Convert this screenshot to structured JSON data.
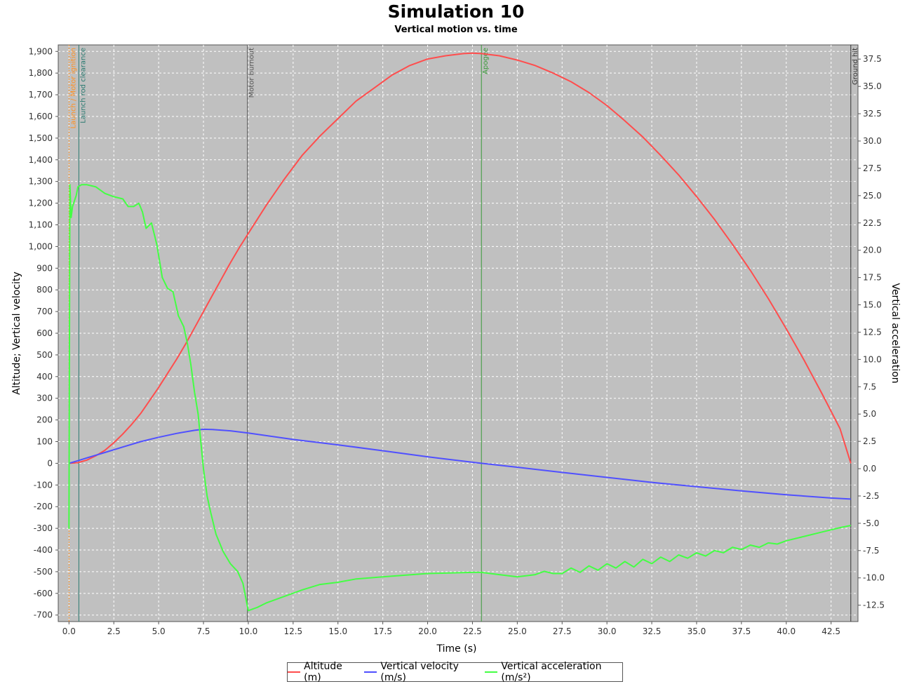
{
  "title": "Simulation 10",
  "subtitle": "Vertical motion vs. time",
  "chart_data": {
    "type": "line",
    "xlabel": "Time (s)",
    "ylabel": "Altitude; Vertical velocity",
    "y2label": "Vertical acceleration",
    "xlim": [
      -0.6,
      44.0
    ],
    "ylim": [
      -730,
      1930
    ],
    "y2lim": [
      -14.0,
      38.8
    ],
    "xticks": [
      0.0,
      2.5,
      5.0,
      7.5,
      10.0,
      12.5,
      15.0,
      17.5,
      20.0,
      22.5,
      25.0,
      27.5,
      30.0,
      32.5,
      35.0,
      37.5,
      40.0,
      42.5
    ],
    "xtick_labels": [
      "0.0",
      "2.5",
      "5.0",
      "7.5",
      "10.0",
      "12.5",
      "15.0",
      "17.5",
      "20.0",
      "22.5",
      "25.0",
      "27.5",
      "30.0",
      "32.5",
      "35.0",
      "37.5",
      "40.0",
      "42.5"
    ],
    "yticks": [
      -700,
      -600,
      -500,
      -400,
      -300,
      -200,
      -100,
      0,
      100,
      200,
      300,
      400,
      500,
      600,
      700,
      800,
      900,
      1000,
      1100,
      1200,
      1300,
      1400,
      1500,
      1600,
      1700,
      1800,
      1900
    ],
    "ytick_labels": [
      "-700",
      "-600",
      "-500",
      "-400",
      "-300",
      "-200",
      "-100",
      "0",
      "100",
      "200",
      "300",
      "400",
      "500",
      "600",
      "700",
      "800",
      "900",
      "1,000",
      "1,100",
      "1,200",
      "1,300",
      "1,400",
      "1,500",
      "1,600",
      "1,700",
      "1,800",
      "1,900"
    ],
    "y2ticks": [
      -12.5,
      -10.0,
      -7.5,
      -5.0,
      -2.5,
      0.0,
      2.5,
      5.0,
      7.5,
      10.0,
      12.5,
      15.0,
      17.5,
      20.0,
      22.5,
      25.0,
      27.5,
      30.0,
      32.5,
      35.0,
      37.5
    ],
    "y2tick_labels": [
      "-12.5",
      "-10.0",
      "-7.5",
      "-5.0",
      "-2.5",
      "0.0",
      "2.5",
      "5.0",
      "7.5",
      "10.0",
      "12.5",
      "15.0",
      "17.5",
      "20.0",
      "22.5",
      "25.0",
      "27.5",
      "30.0",
      "32.5",
      "35.0",
      "37.5"
    ],
    "grid": true,
    "legend_position": "bottom",
    "plot_background": "#c0c0c0",
    "series": [
      {
        "name": "Altitude (m)",
        "axis": "left",
        "color": "#ff4d4d",
        "x": [
          0,
          0.5,
          1,
          1.5,
          2,
          2.5,
          3,
          3.5,
          4,
          4.5,
          5,
          5.5,
          6,
          6.5,
          7,
          7.5,
          8,
          8.5,
          9,
          9.5,
          10,
          11,
          12,
          13,
          14,
          15,
          16,
          17,
          18,
          19,
          20,
          21,
          22,
          22.5,
          23,
          24,
          25,
          26,
          27,
          28,
          29,
          30,
          31,
          32,
          33,
          34,
          35,
          36,
          37,
          38,
          39,
          40,
          41,
          42,
          43,
          43.6
        ],
        "y": [
          0,
          3,
          15,
          35,
          60,
          95,
          135,
          180,
          230,
          290,
          350,
          415,
          480,
          550,
          625,
          700,
          775,
          850,
          925,
          995,
          1060,
          1190,
          1310,
          1420,
          1510,
          1590,
          1670,
          1730,
          1790,
          1835,
          1865,
          1880,
          1890,
          1892,
          1890,
          1880,
          1860,
          1835,
          1800,
          1760,
          1710,
          1650,
          1580,
          1505,
          1420,
          1330,
          1230,
          1125,
          1010,
          890,
          760,
          620,
          475,
          320,
          160,
          0
        ]
      },
      {
        "name": "Vertical velocity (m/s)",
        "axis": "left",
        "color": "#5050ff",
        "x": [
          0,
          0.5,
          1,
          2,
          3,
          4,
          5,
          6,
          7,
          7.5,
          8,
          9,
          10,
          12.5,
          15,
          17.5,
          20,
          22.5,
          23,
          25,
          27.5,
          30,
          32.5,
          35,
          37.5,
          40,
          42.5,
          43.6
        ],
        "y": [
          0,
          12,
          25,
          50,
          75,
          100,
          120,
          138,
          152,
          157,
          156,
          150,
          140,
          110,
          85,
          58,
          30,
          5,
          0,
          -18,
          -42,
          -65,
          -88,
          -108,
          -127,
          -145,
          -160,
          -165
        ]
      },
      {
        "name": "Vertical acceleration (m/s²)",
        "axis": "right",
        "color": "#44ff44",
        "x": [
          0,
          0.05,
          0.12,
          0.2,
          0.3,
          0.4,
          0.5,
          0.7,
          1,
          1.5,
          2,
          2.5,
          3,
          3.3,
          3.6,
          3.9,
          4.1,
          4.3,
          4.6,
          4.9,
          5.2,
          5.5,
          5.8,
          6.1,
          6.4,
          6.6,
          6.8,
          7,
          7.2,
          7.5,
          7.7,
          7.9,
          8.2,
          8.6,
          9,
          9.4,
          9.7,
          10,
          10.5,
          11,
          12,
          13,
          14,
          15,
          16,
          17.5,
          20,
          22.5,
          23,
          24,
          25,
          26,
          26.5,
          27,
          27.5,
          28,
          28.5,
          29,
          29.5,
          30,
          30.5,
          31,
          31.5,
          32,
          32.5,
          33,
          33.5,
          34,
          34.5,
          35,
          35.5,
          36,
          36.5,
          37,
          37.5,
          38,
          38.5,
          39,
          39.5,
          40,
          41,
          42,
          43,
          43.6
        ],
        "y": [
          -5.5,
          26.0,
          23.0,
          24.0,
          24.5,
          25.0,
          25.8,
          26.0,
          26.0,
          25.8,
          25.2,
          24.9,
          24.7,
          24.0,
          24.0,
          24.3,
          23.5,
          22.0,
          22.5,
          20.5,
          17.5,
          16.5,
          16.2,
          14.0,
          13.0,
          11.5,
          9.5,
          7.0,
          5.0,
          0.0,
          -2.5,
          -4.0,
          -6.0,
          -7.6,
          -8.7,
          -9.4,
          -10.5,
          -13.0,
          -12.7,
          -12.3,
          -11.7,
          -11.1,
          -10.6,
          -10.4,
          -10.1,
          -9.9,
          -9.6,
          -9.5,
          -9.5,
          -9.7,
          -9.9,
          -9.7,
          -9.4,
          -9.6,
          -9.6,
          -9.1,
          -9.5,
          -8.9,
          -9.3,
          -8.7,
          -9.1,
          -8.5,
          -9.0,
          -8.3,
          -8.7,
          -8.1,
          -8.5,
          -7.9,
          -8.2,
          -7.7,
          -8.0,
          -7.5,
          -7.7,
          -7.2,
          -7.4,
          -7.0,
          -7.2,
          -6.8,
          -6.9,
          -6.6,
          -6.2,
          -5.8,
          -5.4,
          -5.2
        ]
      }
    ],
    "events": [
      {
        "label": "Launch / Motor ignition",
        "x": 0.0,
        "color": "#ff9020",
        "dashed": true
      },
      {
        "label": "Launch rod clearance",
        "x": 0.55,
        "color": "#2a7a70",
        "dashed": false
      },
      {
        "label": "Motor burnout",
        "x": 9.95,
        "color": "#555555",
        "dashed": false
      },
      {
        "label": "Apogee",
        "x": 23.0,
        "color": "#3a9a3a",
        "dashed": false
      },
      {
        "label": "Ground hit",
        "x": 43.6,
        "color": "#333333",
        "dashed": false
      }
    ]
  }
}
